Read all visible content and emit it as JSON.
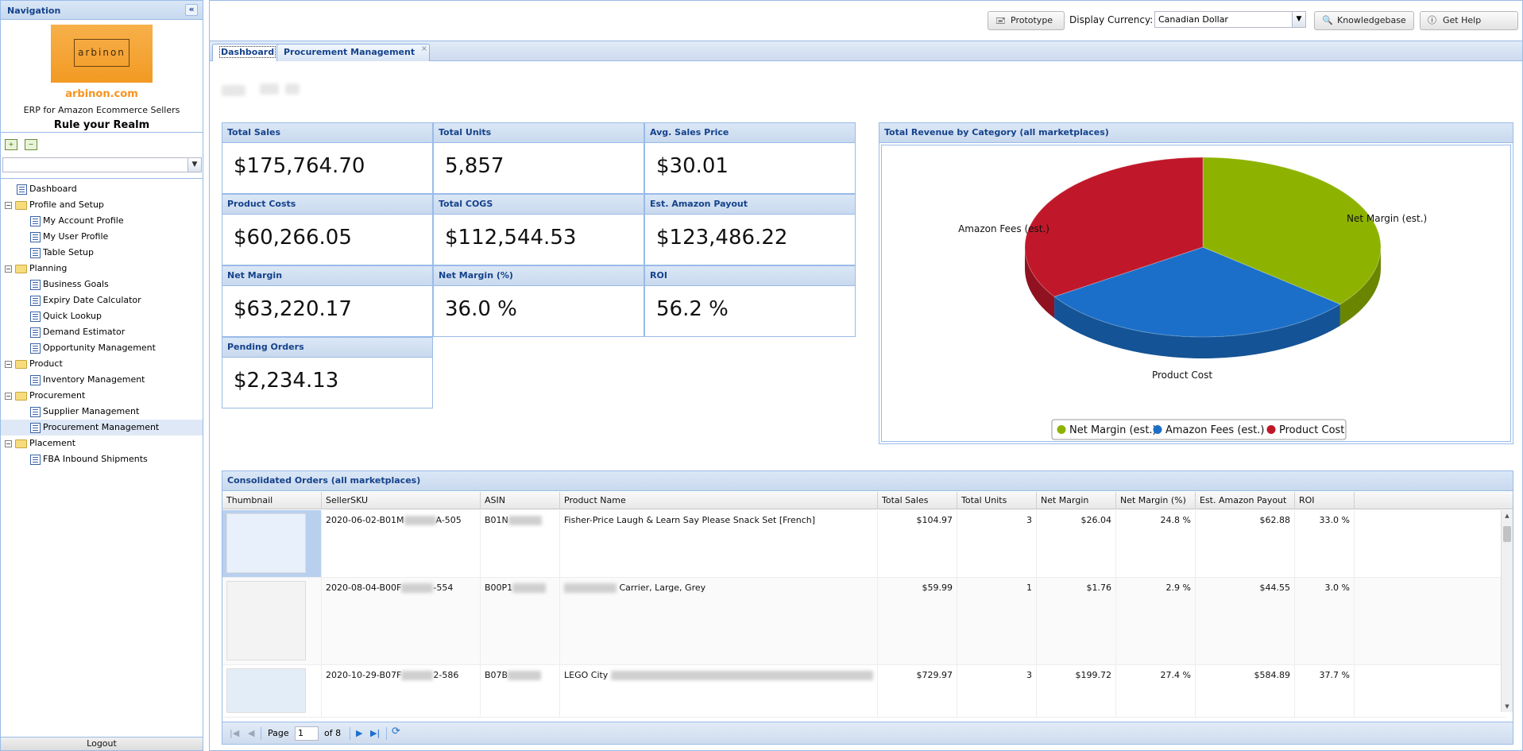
{
  "sidebar": {
    "header": "Navigation",
    "brand": {
      "logo_text": "arbinon",
      "site": "arbinon.com",
      "tagline": "ERP for Amazon Ecommerce Sellers",
      "motto": "Rule your Realm"
    },
    "tree": [
      {
        "label": "Dashboard",
        "level": 0,
        "kind": "leaf"
      },
      {
        "label": "Profile and Setup",
        "level": 0,
        "kind": "folder"
      },
      {
        "label": "My Account Profile",
        "level": 1,
        "kind": "leaf"
      },
      {
        "label": "My User Profile",
        "level": 1,
        "kind": "leaf"
      },
      {
        "label": "Table Setup",
        "level": 1,
        "kind": "leaf"
      },
      {
        "label": "Planning",
        "level": 0,
        "kind": "folder"
      },
      {
        "label": "Business Goals",
        "level": 1,
        "kind": "leaf"
      },
      {
        "label": "Expiry Date Calculator",
        "level": 1,
        "kind": "leaf"
      },
      {
        "label": "Quick Lookup",
        "level": 1,
        "kind": "leaf"
      },
      {
        "label": "Demand Estimator",
        "level": 1,
        "kind": "leaf"
      },
      {
        "label": "Opportunity Management",
        "level": 1,
        "kind": "leaf"
      },
      {
        "label": "Product",
        "level": 0,
        "kind": "folder"
      },
      {
        "label": "Inventory Management",
        "level": 1,
        "kind": "leaf"
      },
      {
        "label": "Procurement",
        "level": 0,
        "kind": "folder"
      },
      {
        "label": "Supplier Management",
        "level": 1,
        "kind": "leaf"
      },
      {
        "label": "Procurement Management",
        "level": 1,
        "kind": "leaf",
        "selected": true
      },
      {
        "label": "Placement",
        "level": 0,
        "kind": "folder"
      },
      {
        "label": "FBA Inbound Shipments",
        "level": 1,
        "kind": "leaf"
      }
    ],
    "logout": "Logout"
  },
  "toolbar": {
    "prototype": "Prototype",
    "currency_label": "Display Currency:",
    "currency_value": "Canadian Dollar",
    "knowledgebase": "Knowledgebase",
    "help": "Get Help"
  },
  "tabs": [
    {
      "label": "Dashboard",
      "active": true
    },
    {
      "label": "Procurement Management",
      "active": false,
      "closable": true
    }
  ],
  "kpis": [
    {
      "title": "Total Sales",
      "value": "$175,764.70"
    },
    {
      "title": "Total Units",
      "value": "5,857"
    },
    {
      "title": "Avg. Sales Price",
      "value": "$30.01"
    },
    {
      "title": "Product Costs",
      "value": "$60,266.05"
    },
    {
      "title": "Total COGS",
      "value": "$112,544.53"
    },
    {
      "title": "Est. Amazon Payout",
      "value": "$123,486.22"
    },
    {
      "title": "Net Margin",
      "value": "$63,220.17"
    },
    {
      "title": "Net Margin (%)",
      "value": "36.0 %"
    },
    {
      "title": "ROI",
      "value": "56.2 %"
    },
    {
      "title": "Pending Orders",
      "value": "$2,234.13"
    }
  ],
  "pie_panel": {
    "title": "Total Revenue by Category (all marketplaces)"
  },
  "chart_data": {
    "type": "pie",
    "title": "Total Revenue by Category (all marketplaces)",
    "categories": [
      "Net Margin (est.)",
      "Amazon Fees (est.)",
      "Product Cost"
    ],
    "values": [
      63220.17,
      52278.48,
      60266.05
    ],
    "colors": [
      "#8db300",
      "#1b6fc8",
      "#c0182a"
    ],
    "legend": "bottom-center",
    "style": "3d"
  },
  "orders": {
    "title": "Consolidated Orders (all marketplaces)",
    "columns": [
      "Thumbnail",
      "SellerSKU",
      "ASIN",
      "Product Name",
      "Total Sales",
      "Total Units",
      "Net Margin",
      "Net Margin (%)",
      "Est. Amazon Payout",
      "ROI"
    ],
    "rows": [
      {
        "sku_pre": "2020-06-02-B01M",
        "sku_post": "A-505",
        "asin": "B01N",
        "name_pre": "Fisher-Price Laugh & Learn Say Please Snack Set [French]",
        "name_post": "",
        "sales": "$104.97",
        "units": "3",
        "margin": "$26.04",
        "margin_pct": "24.8 %",
        "payout": "$62.88",
        "roi": "33.0 %"
      },
      {
        "sku_pre": "2020-08-04-B00F",
        "sku_post": "-554",
        "asin": "B00P1",
        "name_pre": "",
        "name_post": "Carrier, Large, Grey",
        "sales": "$59.99",
        "units": "1",
        "margin": "$1.76",
        "margin_pct": "2.9 %",
        "payout": "$44.55",
        "roi": "3.0 %"
      },
      {
        "sku_pre": "2020-10-29-B07F",
        "sku_post": "2-586",
        "asin": "B07B",
        "name_pre": "LEGO City",
        "name_post": "",
        "sales": "$729.97",
        "units": "3",
        "margin": "$199.72",
        "margin_pct": "27.4 %",
        "payout": "$584.89",
        "roi": "37.7 %"
      }
    ],
    "pager": {
      "page_label": "Page",
      "page": "1",
      "of_label": "of 8"
    }
  }
}
